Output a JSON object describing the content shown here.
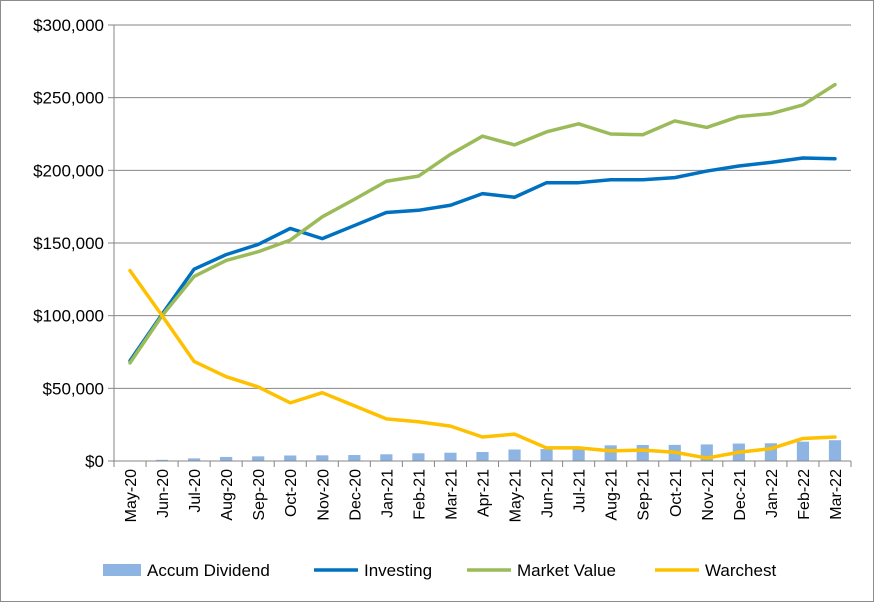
{
  "chart_data": {
    "type": "bar+line",
    "categories": [
      "May-20",
      "Jun-20",
      "Jul-20",
      "Aug-20",
      "Sep-20",
      "Oct-20",
      "Nov-20",
      "Dec-20",
      "Jan-21",
      "Feb-21",
      "Mar-21",
      "Apr-21",
      "May-21",
      "Jun-21",
      "Jul-21",
      "Aug-21",
      "Sep-21",
      "Oct-21",
      "Nov-21",
      "Dec-21",
      "Jan-22",
      "Feb-22",
      "Mar-22"
    ],
    "ylim": [
      0,
      300000
    ],
    "y_ticks": [
      0,
      50000,
      100000,
      150000,
      200000,
      250000,
      300000
    ],
    "y_tick_labels": [
      "$0",
      "$50,000",
      "$100,000",
      "$150,000",
      "$200,000",
      "$250,000",
      "$300,000"
    ],
    "grid": true,
    "legend_position": "bottom",
    "series": [
      {
        "name": "Accum Dividend",
        "kind": "bar",
        "color": "#8db4e2",
        "values": [
          200,
          800,
          1800,
          2800,
          3200,
          3800,
          3900,
          4100,
          4600,
          5300,
          5700,
          6200,
          7900,
          8200,
          8300,
          10800,
          11000,
          11100,
          11400,
          12000,
          12200,
          13300,
          14300
        ]
      },
      {
        "name": "Investing",
        "kind": "line",
        "color": "#0070c0",
        "values": [
          69000,
          101000,
          132000,
          142000,
          149000,
          160000,
          153000,
          162000,
          171000,
          172500,
          176000,
          184000,
          181500,
          191500,
          191500,
          193500,
          193500,
          195000,
          199500,
          203000,
          205500,
          208500,
          208000
        ]
      },
      {
        "name": "Market Value",
        "kind": "line",
        "color": "#9bbb59",
        "values": [
          67500,
          100000,
          127000,
          138000,
          144000,
          152000,
          168000,
          180000,
          192500,
          196000,
          211000,
          223500,
          217500,
          226500,
          232000,
          225000,
          224500,
          234000,
          229500,
          237000,
          239000,
          245000,
          259000
        ]
      },
      {
        "name": "Warchest",
        "kind": "line",
        "color": "#ffc000",
        "values": [
          131000,
          100000,
          68500,
          58000,
          51000,
          40000,
          47000,
          38000,
          29000,
          27000,
          24000,
          16500,
          18500,
          9000,
          9000,
          7000,
          7500,
          6000,
          2000,
          6000,
          8500,
          15500,
          16500
        ]
      }
    ]
  }
}
